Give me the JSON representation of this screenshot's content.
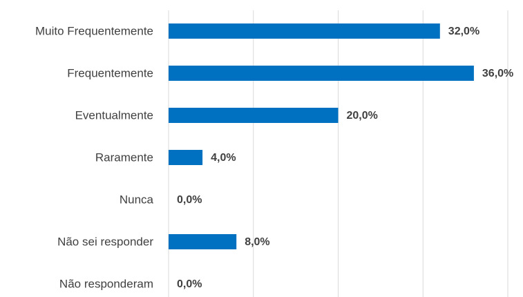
{
  "chart_data": {
    "type": "barh",
    "categories": [
      "Muito Frequentemente",
      "Frequentemente",
      "Eventualmente",
      "Raramente",
      "Nunca",
      "Não sei responder",
      "Não responderam"
    ],
    "values": [
      32,
      36,
      20,
      4,
      0,
      8,
      0
    ],
    "value_labels": [
      "32,0%",
      "36,0%",
      "20,0%",
      "4,0%",
      "0,0%",
      "8,0%",
      "0,0%"
    ],
    "color": "#0070c0",
    "xlim": [
      0,
      40
    ],
    "xticks": [
      0,
      10,
      20,
      30,
      40
    ],
    "grid": true
  }
}
